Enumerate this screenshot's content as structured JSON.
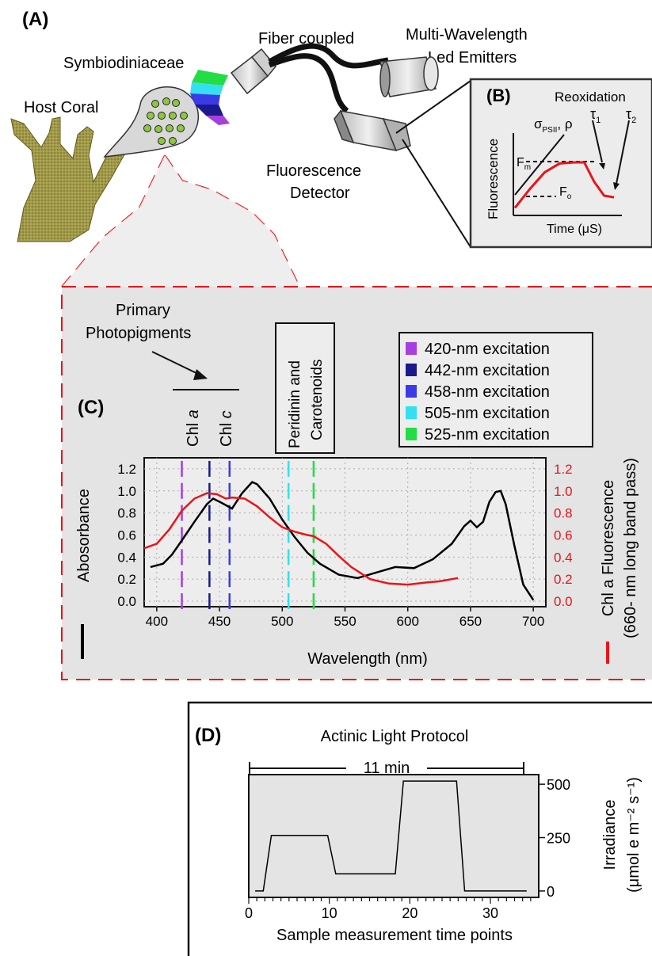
{
  "panel_a": {
    "label": "(A)",
    "host_coral": "Host Coral",
    "symbiodiniaceae": "Symbiodiniaceae",
    "fiber_coupled": "Fiber coupled",
    "led_emitters_line1": "Multi-Wavelength",
    "led_emitters_line2": "Led Emitters",
    "detector_line1": "Fluorescence",
    "detector_line2": "Detector"
  },
  "panel_b": {
    "label": "(B)",
    "reoxidation": "Reoxidation",
    "tau1": "τ",
    "tau1_sub": "1",
    "tau2": "τ",
    "tau2_sub": "2",
    "sigma": "σ",
    "sigma_sub": "PSII",
    "rho": ", ρ",
    "fm": "F",
    "fm_sub": "m",
    "fo": "F",
    "fo_sub": "o",
    "ylabel": "Fluorescence",
    "xlabel": "Time (μS)"
  },
  "panel_c": {
    "label": "(C)",
    "primary_line1": "Primary",
    "primary_line2": "Photopigments",
    "chl_a_prefix": "Chl ",
    "chl_a_italic": "a",
    "chl_c_prefix": "Chl ",
    "chl_c_italic": "c",
    "peridinin_line1": "Peridinin and",
    "peridinin_line2": "Carotenoids",
    "left_axis_label": "Abosorbance",
    "right_axis_label_line1": "Chl a Fluorescence",
    "right_axis_label_line2": "(660- nm long band pass)",
    "xlabel": "Wavelength (nm)",
    "legend": [
      {
        "label": "420-nm excitation",
        "color": "#a63fdf"
      },
      {
        "label": "442-nm excitation",
        "color": "#1a1a8c"
      },
      {
        "label": "458-nm excitation",
        "color": "#3a3ae6"
      },
      {
        "label": "505-nm excitation",
        "color": "#33e0f0"
      },
      {
        "label": "525-nm excitation",
        "color": "#22dd44"
      }
    ]
  },
  "panel_d": {
    "label": "(D)",
    "title": "Actinic Light Protocol",
    "duration": "11 min",
    "xlabel": "Sample measurement time points",
    "ylabel_line1": "Irradiance",
    "ylabel_line2": "(μmol e m⁻² s⁻¹)"
  },
  "chart_data": [
    {
      "type": "line",
      "panel": "C",
      "xlabel": "Wavelength (nm)",
      "xlim": [
        390,
        710
      ],
      "xticks": [
        400,
        450,
        500,
        550,
        600,
        650,
        700
      ],
      "ylabel_left": "Abosorbance",
      "ylabel_right": "Chl a Fluorescence (660- nm long band pass)",
      "ylim": [
        -0.05,
        1.3
      ],
      "yticks": [
        "0.0",
        "0.2",
        "0.4",
        "0.6",
        "0.8",
        "1.0",
        "1.2"
      ],
      "grid": true,
      "excitation_lines_nm": [
        420,
        442,
        458,
        505,
        525
      ],
      "series": [
        {
          "color": "#000000",
          "axis": "left",
          "x": [
            395,
            405,
            412,
            420,
            430,
            440,
            445,
            452,
            460,
            468,
            476,
            480,
            490,
            500,
            510,
            520,
            530,
            545,
            560,
            575,
            590,
            605,
            620,
            635,
            645,
            650,
            655,
            660,
            665,
            670,
            674,
            678,
            685,
            692,
            700
          ],
          "y": [
            0.31,
            0.34,
            0.42,
            0.55,
            0.72,
            0.88,
            0.93,
            0.89,
            0.84,
            0.98,
            1.08,
            1.06,
            0.93,
            0.74,
            0.58,
            0.44,
            0.34,
            0.24,
            0.21,
            0.26,
            0.31,
            0.3,
            0.38,
            0.52,
            0.68,
            0.73,
            0.67,
            0.72,
            0.9,
            0.99,
            1.0,
            0.88,
            0.5,
            0.15,
            0.01
          ]
        },
        {
          "color": "#e8151a",
          "axis": "right",
          "x": [
            390,
            400,
            410,
            420,
            430,
            440,
            448,
            455,
            460,
            470,
            480,
            490,
            500,
            510,
            520,
            525,
            535,
            545,
            555,
            570,
            585,
            600,
            615,
            625,
            640
          ],
          "y": [
            0.48,
            0.52,
            0.65,
            0.82,
            0.93,
            0.98,
            0.97,
            0.93,
            0.94,
            0.93,
            0.86,
            0.76,
            0.67,
            0.63,
            0.6,
            0.59,
            0.52,
            0.41,
            0.31,
            0.2,
            0.16,
            0.15,
            0.17,
            0.18,
            0.21
          ]
        }
      ]
    },
    {
      "type": "line",
      "panel": "D",
      "title": "Actinic Light Protocol",
      "xlabel": "Sample measurement time points",
      "xlim": [
        0,
        36
      ],
      "xticks": [
        0,
        10,
        20,
        30
      ],
      "ylabel": "Irradiance (μmol e m⁻² s⁻¹)",
      "ylim": [
        -30,
        545
      ],
      "yticks": [
        0,
        250,
        500
      ],
      "series": [
        {
          "color": "#000000",
          "x": [
            0.8,
            1.8,
            2.8,
            9.8,
            10.8,
            18.2,
            19.2,
            25.8,
            26.8,
            34.5
          ],
          "y": [
            0,
            0,
            260,
            260,
            80,
            80,
            515,
            515,
            0,
            0
          ]
        }
      ]
    }
  ],
  "panel_b_chart": {
    "type": "line",
    "series": [
      {
        "color": "#e8151a",
        "x": [
          0,
          0.15,
          0.3,
          0.45,
          0.6,
          0.7,
          0.8,
          0.9,
          1.0
        ],
        "y": [
          0.08,
          0.42,
          0.72,
          0.88,
          0.9,
          0.9,
          0.55,
          0.3,
          0.27
        ]
      }
    ]
  }
}
